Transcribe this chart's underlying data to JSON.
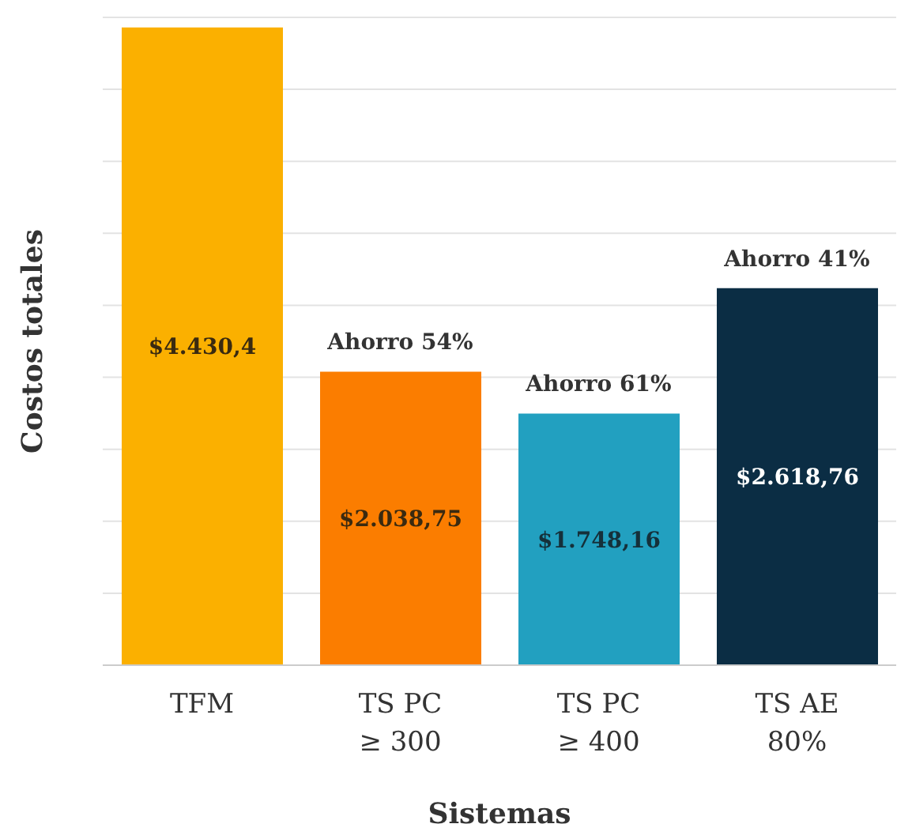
{
  "chart_data": {
    "type": "bar",
    "xlabel": "Sistemas",
    "ylabel": "Costos totales",
    "categories": [
      "TFM",
      "TS PC\n≥ 300",
      "TS PC\n≥ 400",
      "TS AE\n80%"
    ],
    "values": [
      4430.4,
      2038.75,
      1748.16,
      2618.76
    ],
    "colors": [
      "#fbb000",
      "#fb7d00",
      "#22a0c0",
      "#0b2d44"
    ],
    "value_labels": [
      "$4.430,4",
      "$2.038,75",
      "$1.748,16",
      "$2.618,76"
    ],
    "annotations": [
      {
        "text": "Ahorro 54%",
        "x": "TS PC\n≥ 300",
        "y": 2038.75
      },
      {
        "text": "Ahorro 61%",
        "x": "TS PC\n≥ 400",
        "y": 1748.16
      },
      {
        "text": "Ahorro 41%",
        "x": "TS AE\n80%",
        "y": 2618.76
      }
    ],
    "ylim": [
      0,
      4500
    ],
    "grid": "y",
    "tick_labels": "x"
  }
}
